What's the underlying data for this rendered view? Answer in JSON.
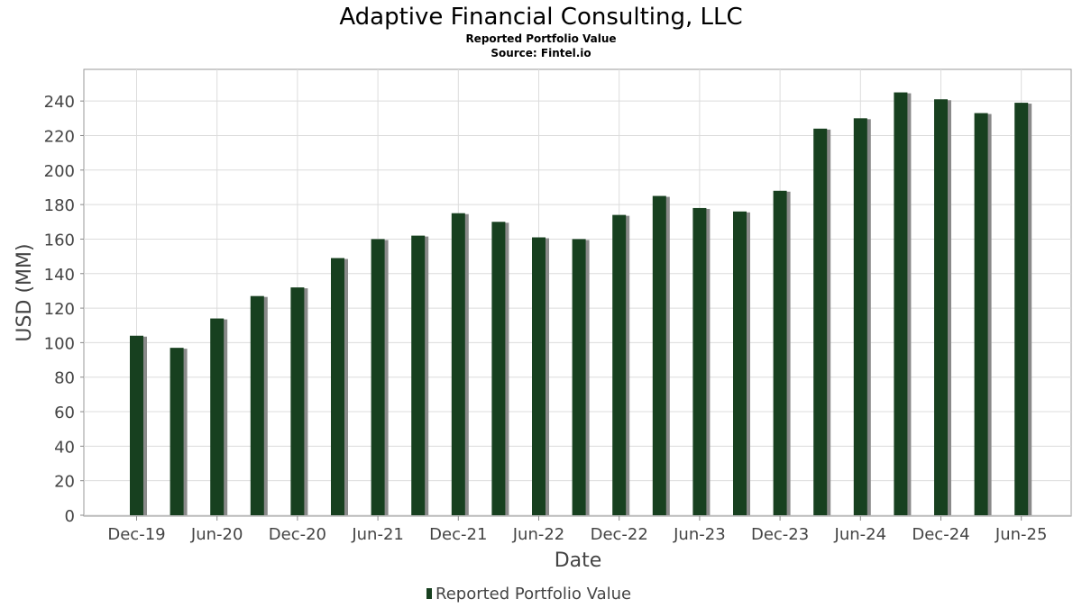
{
  "chart_data": {
    "type": "bar",
    "title": "Adaptive Financial Consulting, LLC",
    "subtitles": [
      "Reported Portfolio Value",
      "Source: Fintel.io"
    ],
    "xlabel": "Date",
    "ylabel": "USD (MM)",
    "ylim": [
      0,
      250
    ],
    "yticks": [
      0,
      20,
      40,
      60,
      80,
      100,
      120,
      140,
      160,
      180,
      200,
      220,
      240
    ],
    "xtick_labels": [
      "Dec-19",
      "Jun-20",
      "Dec-20",
      "Jun-21",
      "Dec-21",
      "Jun-22",
      "Dec-22",
      "Jun-23",
      "Dec-23",
      "Jun-24",
      "Dec-24",
      "Jun-25"
    ],
    "categories": [
      "Dec-19",
      "Mar-20",
      "Jun-20",
      "Sep-20",
      "Dec-20",
      "Mar-21",
      "Jun-21",
      "Sep-21",
      "Dec-21",
      "Mar-22",
      "Jun-22",
      "Sep-22",
      "Dec-22",
      "Mar-23",
      "Jun-23",
      "Sep-23",
      "Dec-23",
      "Mar-24",
      "Jun-24",
      "Sep-24",
      "Dec-24",
      "Mar-25",
      "Jun-25"
    ],
    "series": [
      {
        "name": "Reported Portfolio Value",
        "color": "#17401f",
        "values": [
          104,
          97,
          114,
          127,
          132,
          149,
          160,
          162,
          175,
          170,
          161,
          160,
          174,
          185,
          178,
          176,
          188,
          224,
          230,
          245,
          241,
          233,
          239
        ]
      }
    ],
    "grid": true,
    "legend_position": "bottom-center"
  }
}
